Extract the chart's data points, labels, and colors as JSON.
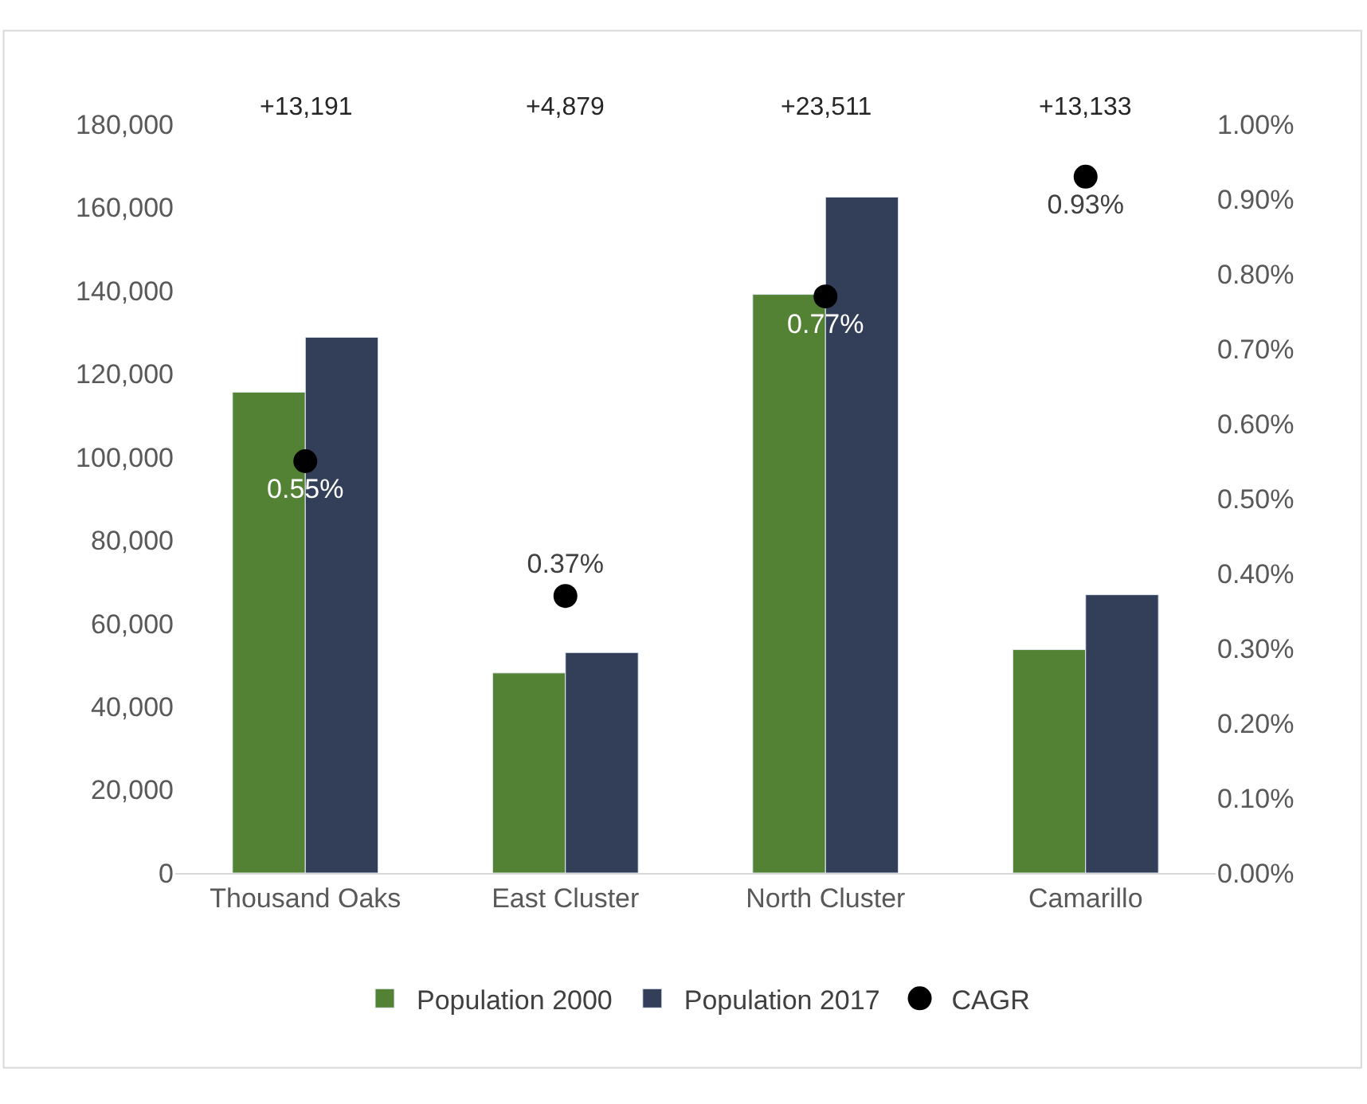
{
  "chart_data": {
    "type": "bar",
    "categories": [
      "Thousand Oaks",
      "East Cluster",
      "North Cluster",
      "Camarillo"
    ],
    "series": [
      {
        "name": "Population 2000",
        "color": "#548235",
        "values": [
          115600,
          48100,
          139100,
          53700
        ]
      },
      {
        "name": "Population 2017",
        "color": "#333f58",
        "values": [
          128800,
          53000,
          162500,
          66900
        ]
      },
      {
        "name": "CAGR",
        "type": "scatter",
        "axis": "y2",
        "color": "#000000",
        "marker": "circle",
        "values": [
          0.55,
          0.37,
          0.77,
          0.93
        ],
        "value_labels": [
          "0.55%",
          "0.37%",
          "0.77%",
          "0.93%"
        ]
      }
    ],
    "annotations": [
      "+13,191",
      "+4,879",
      "+23,511",
      "+13,133"
    ],
    "ylim": [
      0,
      180000
    ],
    "yticks": [
      {
        "value": 0,
        "label": "0"
      },
      {
        "value": 20000,
        "label": "20,000"
      },
      {
        "value": 40000,
        "label": "40,000"
      },
      {
        "value": 60000,
        "label": "60,000"
      },
      {
        "value": 80000,
        "label": "80,000"
      },
      {
        "value": 100000,
        "label": "100,000"
      },
      {
        "value": 120000,
        "label": "120,000"
      },
      {
        "value": 140000,
        "label": "140,000"
      },
      {
        "value": 160000,
        "label": "160,000"
      },
      {
        "value": 180000,
        "label": "180,000"
      }
    ],
    "y2lim": [
      0,
      1.0
    ],
    "y2ticks": [
      {
        "value": 0,
        "label": "0.00%"
      },
      {
        "value": 0.1,
        "label": "0.10%"
      },
      {
        "value": 0.2,
        "label": "0.20%"
      },
      {
        "value": 0.3,
        "label": "0.30%"
      },
      {
        "value": 0.4,
        "label": "0.40%"
      },
      {
        "value": 0.5,
        "label": "0.50%"
      },
      {
        "value": 0.6,
        "label": "0.60%"
      },
      {
        "value": 0.7,
        "label": "0.70%"
      },
      {
        "value": 0.8,
        "label": "0.80%"
      },
      {
        "value": 0.9,
        "label": "0.90%"
      },
      {
        "value": 1.0,
        "label": "1.00%"
      }
    ],
    "grid": false,
    "legend": "bottom"
  }
}
